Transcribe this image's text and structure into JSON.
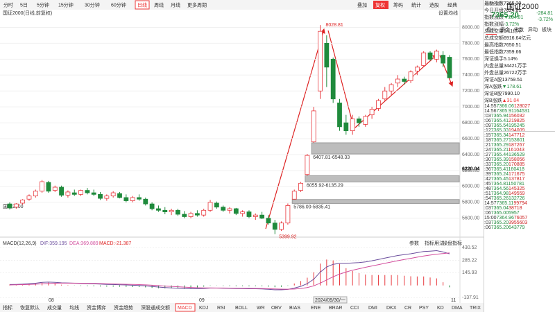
{
  "toolbar": {
    "periods": [
      "分时",
      "5日",
      "5分钟",
      "15分钟",
      "30分钟",
      "60分钟",
      "日线",
      "周线",
      "月线",
      "更多周期"
    ],
    "active_index": 6,
    "tools": [
      "叠加",
      "复权",
      "筹码",
      "统计",
      "选股",
      "经典"
    ],
    "active_tool_index": 1
  },
  "chart_title": "国证2000(日线,前复权)",
  "ma_setting": "设置均线",
  "chart_data": {
    "type": "candlestick",
    "name": "国证2000",
    "up_color": "#e8383d",
    "down_color": "#1f8a3c",
    "candles": [
      [
        5780,
        5800,
        5710,
        5730
      ],
      [
        5740,
        5790,
        5720,
        5780
      ],
      [
        5790,
        5840,
        5770,
        5830
      ],
      [
        5840,
        5900,
        5820,
        5880
      ],
      [
        5880,
        5960,
        5860,
        5940
      ],
      [
        5940,
        6080,
        5920,
        6060
      ],
      [
        6050,
        6070,
        5920,
        5940
      ],
      [
        5950,
        6010,
        5930,
        5990
      ],
      [
        5990,
        6010,
        5870,
        5890
      ],
      [
        5890,
        5950,
        5860,
        5930
      ],
      [
        5920,
        5960,
        5880,
        5900
      ],
      [
        5900,
        5960,
        5880,
        5950
      ],
      [
        5950,
        5980,
        5900,
        5920
      ],
      [
        5920,
        5960,
        5880,
        5900
      ],
      [
        5900,
        5930,
        5830,
        5850
      ],
      [
        5850,
        5900,
        5820,
        5880
      ],
      [
        5880,
        5940,
        5860,
        5920
      ],
      [
        5910,
        5930,
        5850,
        5860
      ],
      [
        5860,
        5900,
        5800,
        5820
      ],
      [
        5820,
        5880,
        5800,
        5860
      ],
      [
        5860,
        5900,
        5820,
        5840
      ],
      [
        5840,
        5860,
        5760,
        5780
      ],
      [
        5780,
        5800,
        5700,
        5720
      ],
      [
        5720,
        5760,
        5680,
        5700
      ],
      [
        5700,
        5740,
        5650,
        5680
      ],
      [
        5680,
        5720,
        5640,
        5700
      ],
      [
        5700,
        5720,
        5630,
        5650
      ],
      [
        5650,
        5690,
        5600,
        5620
      ],
      [
        5620,
        5680,
        5600,
        5660
      ],
      [
        5660,
        5700,
        5620,
        5640
      ],
      [
        5640,
        5720,
        5620,
        5700
      ],
      [
        5700,
        5830,
        5680,
        5800
      ],
      [
        5790,
        5810,
        5720,
        5740
      ],
      [
        5740,
        5760,
        5680,
        5700
      ],
      [
        5700,
        5740,
        5660,
        5720
      ],
      [
        5720,
        5730,
        5640,
        5660
      ],
      [
        5660,
        5700,
        5620,
        5680
      ],
      [
        5680,
        5700,
        5600,
        5620
      ],
      [
        5620,
        5660,
        5580,
        5640
      ],
      [
        5640,
        5680,
        5590,
        5600
      ],
      [
        5600,
        5640,
        5520,
        5540
      ],
      [
        5540,
        5580,
        5399.92,
        5460
      ],
      [
        5460,
        5560,
        5440,
        5540
      ],
      [
        5540,
        5786,
        5520,
        5760
      ],
      [
        5840,
        5960,
        5835.41,
        5940
      ],
      [
        5950,
        6055.92,
        5930,
        6040
      ],
      [
        6150,
        6407.81,
        6135.29,
        6390
      ],
      [
        6560,
        7000,
        6548.33,
        6950
      ],
      [
        7200,
        8028.81,
        7100,
        7950
      ],
      [
        7800,
        7900,
        7250,
        7500
      ],
      [
        7600,
        7620,
        7050,
        7100
      ],
      [
        7050,
        7100,
        6700,
        6750
      ],
      [
        6800,
        6900,
        6650,
        6700
      ],
      [
        6700,
        6900,
        6650,
        6850
      ],
      [
        6850,
        6880,
        6750,
        6800
      ],
      [
        6780,
        6900,
        6750,
        6880
      ],
      [
        6900,
        7000,
        6850,
        6970
      ],
      [
        6980,
        7100,
        6950,
        7080
      ],
      [
        7100,
        7250,
        7080,
        7200
      ],
      [
        7200,
        7300,
        7150,
        7280
      ],
      [
        7300,
        7400,
        7250,
        7350
      ],
      [
        7350,
        7380,
        7280,
        7320
      ],
      [
        7330,
        7460,
        7300,
        7440
      ],
      [
        7450,
        7520,
        7400,
        7500
      ],
      [
        7520,
        7700,
        7500,
        7680
      ],
      [
        7680,
        7700,
        7580,
        7600
      ],
      [
        7600,
        7720,
        7560,
        7700
      ],
      [
        7650,
        7700,
        7500,
        7550
      ],
      [
        7624.81,
        7650.51,
        7359.66,
        7365.2
      ]
    ],
    "ylim": [
      5380,
      8100
    ],
    "yticks": [
      {
        "value": 5600,
        "label": "5600.00"
      },
      {
        "value": 5800,
        "label": "5800.00"
      },
      {
        "value": 6000,
        "label": "6000.00"
      },
      {
        "value": 6200,
        "label": "6200.00"
      },
      {
        "value": 6400,
        "label": "6400.00"
      },
      {
        "value": 6600,
        "label": "6600.00"
      },
      {
        "value": 6800,
        "label": "6800.00"
      },
      {
        "value": 7000,
        "label": "7000.00"
      },
      {
        "value": 7200,
        "label": "7200.00"
      },
      {
        "value": 7400,
        "label": "7400.00"
      },
      {
        "value": 7600,
        "label": "7600.00"
      },
      {
        "value": 7800,
        "label": "7800.00"
      },
      {
        "value": 8000,
        "label": "8000.00"
      }
    ],
    "crosshair_price": 6220.04,
    "gaps": [
      {
        "low": 6407.81,
        "high": 6548.33,
        "label": "6407.81-6548.33",
        "start": 47
      },
      {
        "low": 6055.92,
        "high": 6135.29,
        "label": "6055.92-6135.29",
        "start": 46
      },
      {
        "low": 5786,
        "high": 5835.41,
        "label": "5786.00-5835.41",
        "start": 44
      }
    ],
    "x_labels": [
      "08",
      "09",
      "2024/09/30/一",
      "11"
    ]
  },
  "macd": {
    "title": "MACD(12,26,9)",
    "dif_label": "DIF:359.195",
    "dea_label": "DEA:369.889",
    "macd_label": "MACD:-21.387",
    "tools": [
      "参数",
      "指标用法",
      "操盘指标"
    ],
    "dif": [
      10,
      12,
      15,
      20,
      25,
      35,
      38,
      35,
      30,
      28,
      25,
      22,
      20,
      18,
      15,
      12,
      10,
      8,
      5,
      2,
      0,
      -5,
      -12,
      -18,
      -24,
      -28,
      -32,
      -36,
      -38,
      -38,
      -35,
      -30,
      -30,
      -32,
      -33,
      -35,
      -36,
      -38,
      -38,
      -40,
      -44,
      -50,
      -50,
      -45,
      -30,
      -10,
      20,
      70,
      150,
      210,
      240,
      250,
      250,
      255,
      260,
      268,
      280,
      295,
      310,
      325,
      340,
      350,
      360,
      372,
      385,
      390,
      395,
      380,
      359.195
    ],
    "dea": [
      5,
      7,
      9,
      12,
      14,
      18,
      22,
      25,
      26,
      26,
      26,
      25,
      24,
      23,
      21,
      19,
      17,
      15,
      13,
      11,
      9,
      6,
      2,
      -2,
      -7,
      -11,
      -15,
      -19,
      -23,
      -26,
      -28,
      -28,
      -29,
      -29,
      -30,
      -31,
      -32,
      -33,
      -34,
      -35,
      -37,
      -40,
      -42,
      -43,
      -41,
      -35,
      -24,
      -5,
      26,
      63,
      98,
      128,
      152,
      173,
      190,
      206,
      221,
      236,
      251,
      266,
      281,
      295,
      308,
      321,
      334,
      345,
      355,
      362,
      369.889
    ],
    "hist": [
      10,
      10,
      12,
      16,
      22,
      34,
      32,
      20,
      8,
      4,
      -2,
      -6,
      -8,
      -10,
      -12,
      -14,
      -14,
      -14,
      -16,
      -18,
      -18,
      -22,
      -28,
      -32,
      -34,
      -34,
      -34,
      -34,
      -30,
      -24,
      -14,
      -4,
      -2,
      -6,
      -6,
      -8,
      -8,
      -10,
      -8,
      -10,
      -14,
      -20,
      -16,
      -4,
      22,
      50,
      88,
      150,
      248,
      294,
      284,
      244,
      196,
      164,
      140,
      124,
      118,
      118,
      118,
      118,
      118,
      110,
      104,
      102,
      102,
      90,
      80,
      36,
      -21.387
    ],
    "ylim": [
      -160,
      470
    ],
    "yticks": [
      430.52,
      285.22,
      145.93,
      -137.91
    ]
  },
  "indicator_tabs": [
    "指标",
    "恢复默认",
    "成交量",
    "均线",
    "资金博弈",
    "资金趋势",
    "深股通成交额",
    "MACD",
    "KDJ",
    "RSI",
    "BOLL",
    "WR",
    "OBV",
    "BIAS",
    "ENE",
    "BRAR",
    "CCI",
    "DMI",
    "DKX",
    "CR",
    "PSY",
    "KD",
    "DMA",
    "TRIX",
    "更多",
    "横版"
  ],
  "active_tab": 7,
  "quote": {
    "code": "399303",
    "name": "国证2000",
    "price": "7365.20",
    "change": "-284.81",
    "pct": "-3.72%",
    "tabs": [
      "盘口",
      "资金",
      "指数",
      "异动",
      "板块"
    ],
    "fields": [
      [
        "最新指数",
        "7365.20"
      ],
      [
        "今日开盘",
        "7624.81"
      ],
      [
        "指数涨跌",
        "▼284.81"
      ],
      [
        "指数涨幅",
        "-3.72%"
      ],
      [
        "总成交量",
        "6.11亿手"
      ],
      [
        "总成交额",
        "6916.64亿元"
      ],
      [
        "最高指数",
        "7650.51"
      ],
      [
        "最低指数",
        "7359.66"
      ],
      [
        "深证换手",
        "5.14%"
      ],
      [
        "内盘总量",
        "34421万手"
      ],
      [
        "外盘总量",
        "26722万手"
      ],
      [
        "深证A股",
        "13759.51"
      ],
      [
        "深A涨跌",
        "▼178.61"
      ],
      [
        "深证B股",
        "7990.10"
      ],
      [
        "深B涨跌",
        "▲31.04"
      ]
    ],
    "trades": [
      [
        "14:55",
        "7366.06",
        "128027"
      ],
      [
        "14:56",
        "7365.91",
        "164531"
      ],
      [
        ":03",
        "7365.94",
        "156032"
      ],
      [
        ":06",
        "7365.41",
        "219825"
      ],
      [
        ":09",
        "7365.54",
        "195245"
      ],
      [
        ":12",
        "7365.33",
        "194009"
      ],
      [
        ":15",
        "7365.34",
        "147712"
      ],
      [
        ":18",
        "7365.27",
        "153601"
      ],
      [
        ":21",
        "7365.29",
        "187267"
      ],
      [
        ":24",
        "7365.21",
        "161043"
      ],
      [
        ":27",
        "7365.44",
        "136529"
      ],
      [
        ":30",
        "7365.39",
        "158056"
      ],
      [
        ":33",
        "7365.20",
        "170885"
      ],
      [
        ":36",
        "7365.41",
        "160418"
      ],
      [
        ":39",
        "7365.24",
        "171675"
      ],
      [
        ":42",
        "7365.45",
        "137817"
      ],
      [
        ":45",
        "7364.81",
        "150781"
      ],
      [
        ":48",
        "7364.56",
        "145325"
      ],
      [
        ":51",
        "7364.98",
        "149559"
      ],
      [
        ":54",
        "7365.26",
        "132726"
      ],
      [
        "14:57",
        "7365.11",
        "99794"
      ],
      [
        ":03",
        "7365.04",
        "38718"
      ],
      [
        ":06",
        "7365.00",
        "5957"
      ],
      [
        "15:00",
        "7364.96",
        "76057"
      ],
      [
        ":03",
        "7365.20",
        "3955603"
      ],
      [
        ":06",
        "7365.20",
        "643779"
      ]
    ]
  }
}
